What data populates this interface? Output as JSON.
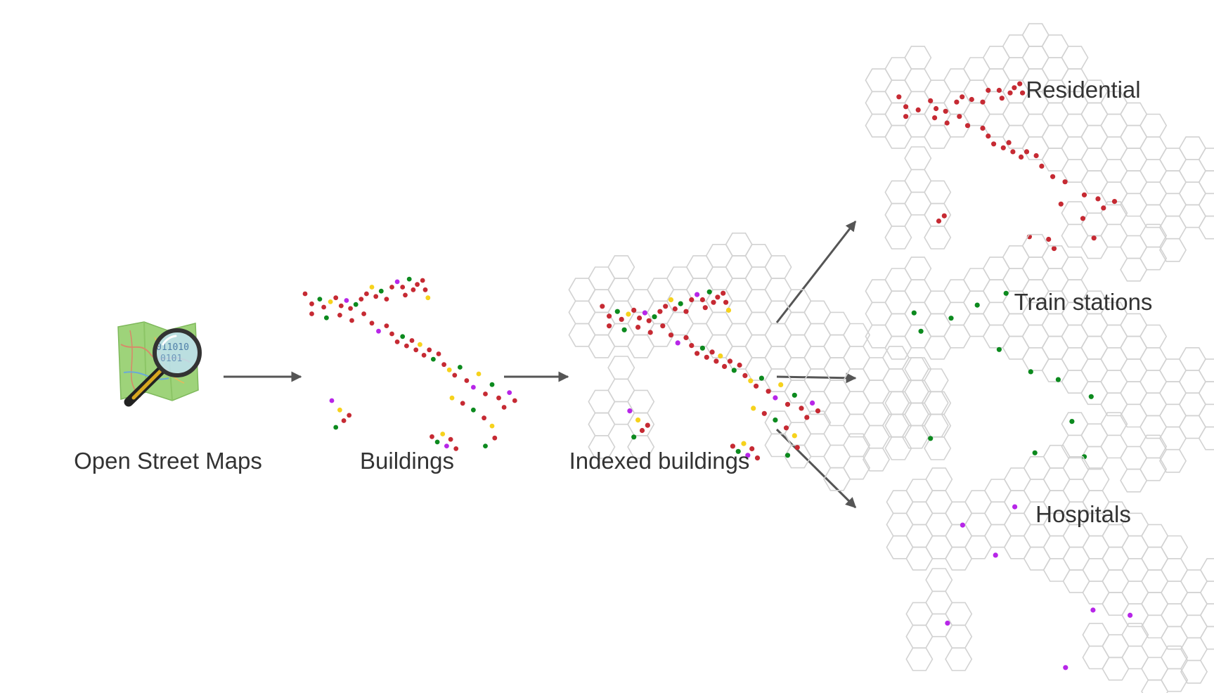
{
  "labels": {
    "osm": "Open Street Maps",
    "buildings": "Buildings",
    "indexed": "Indexed buildings",
    "residential": "Residential",
    "train_stations": "Train stations",
    "hospitals": "Hospitals"
  },
  "icons": {
    "source": "osm-logo-icon",
    "magnifier": "magnifier-icon"
  },
  "colors": {
    "residential": "#c62a33",
    "train_station": "#0c8a1e",
    "hospital": "#b726e8",
    "other": "#f6d21c",
    "hex_stroke": "#d2d2d2",
    "arrow": "#555555",
    "text": "#333333"
  }
}
